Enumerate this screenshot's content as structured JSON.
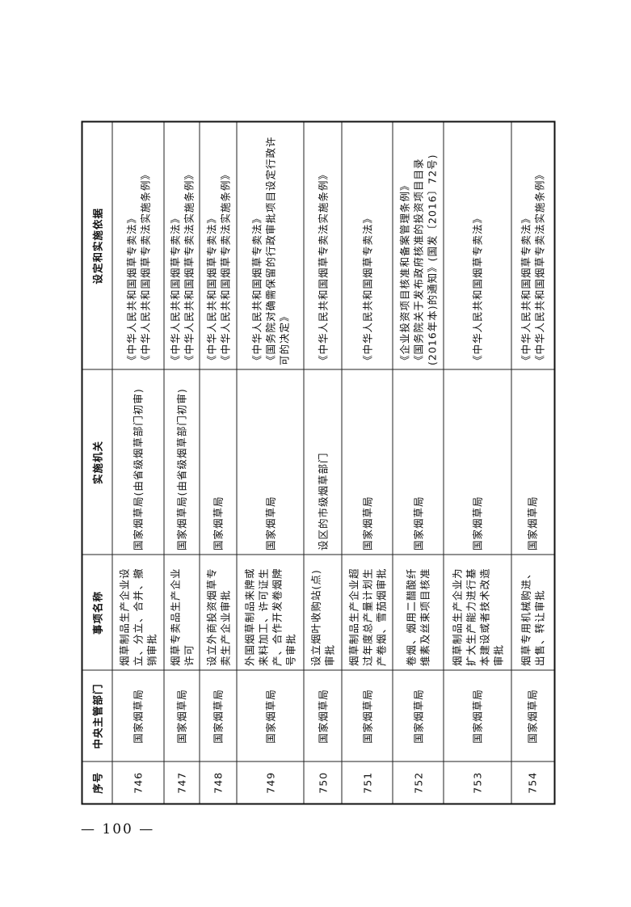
{
  "page_number": "— 100 —",
  "table": {
    "headers": [
      "序号",
      "中央主管部门",
      "事项名称",
      "实施机关",
      "设定和实施依据"
    ],
    "rows": [
      {
        "no": "746",
        "dept": "国家烟草局",
        "item": "烟草制品生产企业设立、分立、合并、撤销审批",
        "agency": "国家烟草局(由省级烟草部门初审)",
        "basis": "《中华人民共和国烟草专卖法》\n《中华人民共和国烟草专卖法实施条例》"
      },
      {
        "no": "747",
        "dept": "国家烟草局",
        "item": "烟草专卖品生产企业许可",
        "agency": "国家烟草局(由省级烟草部门初审)",
        "basis": "《中华人民共和国烟草专卖法》\n《中华人民共和国烟草专卖法实施条例》"
      },
      {
        "no": "748",
        "dept": "国家烟草局",
        "item": "设立外商投资烟草专卖生产企业审批",
        "agency": "国家烟草局",
        "basis": "《中华人民共和国烟草专卖法》\n《中华人民共和国烟草专卖法实施条例》"
      },
      {
        "no": "749",
        "dept": "国家烟草局",
        "item": "外国烟草制品来牌或来料加工、许可证生产、合作开发卷烟牌号审批",
        "agency": "国家烟草局",
        "basis": "《中华人民共和国烟草专卖法》\n《国务院对确需保留的行政审批项目设定行政许可的决定》"
      },
      {
        "no": "750",
        "dept": "国家烟草局",
        "item": "设立烟叶收购站(点)审批",
        "agency": "设区的市级烟草部门",
        "basis": "《中华人民共和国烟草专卖法实施条例》"
      },
      {
        "no": "751",
        "dept": "国家烟草局",
        "item": "烟草制品生产企业超过年度总产量计划生产卷烟、雪茄烟审批",
        "agency": "国家烟草局",
        "basis": "《中华人民共和国烟草专卖法》"
      },
      {
        "no": "752",
        "dept": "国家烟草局",
        "item": "卷烟、烟用二醋酸纤维素及丝束项目核准",
        "agency": "国家烟草局",
        "basis": "《企业投资项目核准和备案管理条例》\n《国务院关于发布政府核准的投资项目目录(2016年本)的通知》(国发〔2016〕72号)"
      },
      {
        "no": "753",
        "dept": "国家烟草局",
        "item": "烟草制品生产企业为扩大生产能力进行基本建设或者技术改造审批",
        "agency": "国家烟草局",
        "basis": "《中华人民共和国烟草专卖法》"
      },
      {
        "no": "754",
        "dept": "国家烟草局",
        "item": "烟草专用机械购进、出售、转让审批",
        "agency": "国家烟草局",
        "basis": "《中华人民共和国烟草专卖法》\n《中华人民共和国烟草专卖法实施条例》"
      }
    ]
  }
}
